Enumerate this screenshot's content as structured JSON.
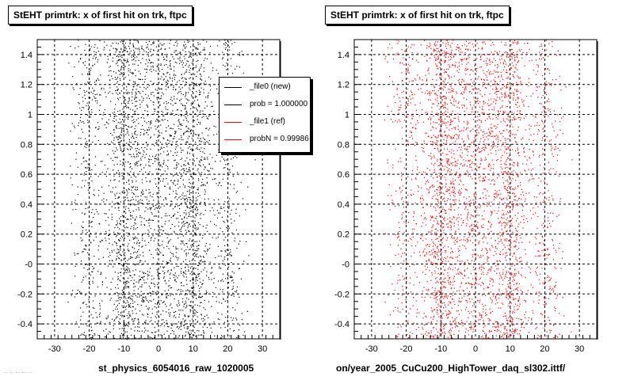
{
  "panels": [
    {
      "title": "StEHT primtrk: x of first hit on trk, ftpc",
      "x_caption": "st_physics_6054016_raw_1020005",
      "color": "#000000"
    },
    {
      "title": "StEHT primtrk: x of first hit on trk, ftpc",
      "x_caption": "on/year_2005_CuCu200_HighTower_daq_sl302.ittf/",
      "color": "#ff0000"
    }
  ],
  "legend": {
    "items": [
      {
        "label": "_file0 (new)",
        "color": "#000000"
      },
      {
        "label": "prob = 1.000000",
        "color": "#000000"
      },
      {
        "label": "_file1 (ref)",
        "color": "#ff0000"
      },
      {
        "label": "probN = 0.99986",
        "color": "#ff0000"
      }
    ]
  },
  "footer_text": "... ... ... ... ...",
  "chart_data": [
    {
      "type": "scatter",
      "title": "StEHT primtrk: x of first hit on trk, ftpc",
      "xlabel": "st_physics_6054016_raw_1020005",
      "ylabel": "",
      "xlim": [
        -35,
        35
      ],
      "ylim": [
        -0.5,
        1.5
      ],
      "x_ticks": [
        -30,
        -20,
        -10,
        0,
        10,
        20,
        30
      ],
      "y_ticks": [
        1.4,
        1.2,
        1,
        0.8,
        0.6,
        0.4,
        0.2,
        0,
        -0.2,
        -0.4
      ],
      "y_tick_labels": [
        "1.4",
        "1.2",
        "1",
        "0.8",
        "0.6",
        "0.4",
        "0.2",
        "-0",
        "-0.2",
        "-0.4"
      ],
      "grid": true,
      "legend_position": "top-right",
      "series": [
        {
          "name": "_file0 (new)",
          "color": "#000000",
          "description_points": "dense vertical bands of points; highest density near x = -10 and x = +10, spread from about x = -22 to x = +22 over the full y range",
          "band_centers": [
            -20,
            -10,
            -3,
            3,
            10,
            20
          ],
          "band_weights": [
            0.4,
            1.0,
            0.55,
            0.55,
            1.0,
            0.4
          ]
        }
      ]
    },
    {
      "type": "scatter",
      "title": "StEHT primtrk: x of first hit on trk, ftpc",
      "xlabel": "on/year_2005_CuCu200_HighTower_daq_sl302.ittf/",
      "ylabel": "",
      "xlim": [
        -35,
        35
      ],
      "ylim": [
        -0.5,
        1.5
      ],
      "x_ticks": [
        -30,
        -20,
        -10,
        0,
        10,
        20,
        30
      ],
      "y_ticks": [
        1.4,
        1.2,
        1,
        0.8,
        0.6,
        0.4,
        0.2,
        0,
        -0.2,
        -0.4
      ],
      "y_tick_labels": [
        "1.4",
        "1.2",
        "1",
        "0.8",
        "0.6",
        "0.4",
        "0.2",
        "-0",
        "-0.2",
        "-0.4"
      ],
      "grid": true,
      "series": [
        {
          "name": "_file1 (ref)",
          "color": "#ff0000",
          "band_centers": [
            -20,
            -10,
            -3,
            3,
            10,
            20
          ],
          "band_weights": [
            0.4,
            1.0,
            0.55,
            0.55,
            1.0,
            0.4
          ]
        }
      ]
    }
  ]
}
